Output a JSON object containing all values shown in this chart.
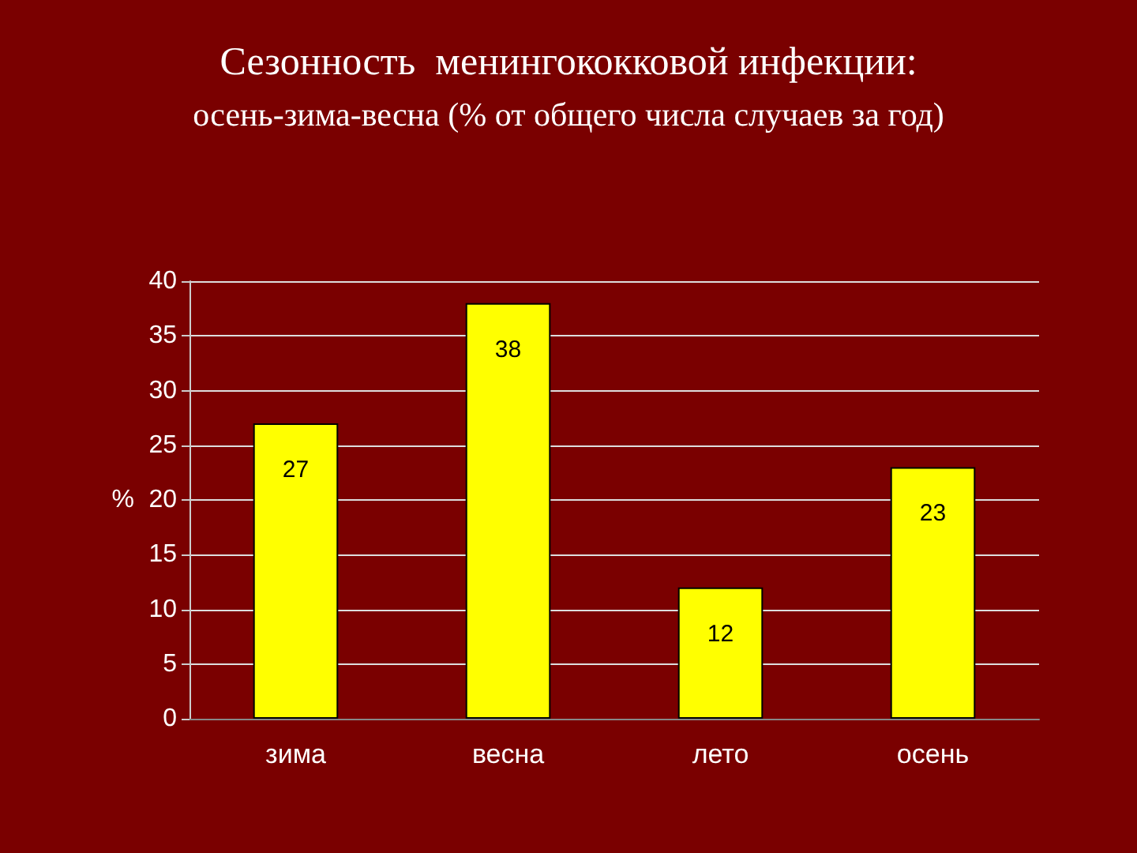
{
  "chart_data": {
    "type": "bar",
    "title": "Сезонность  менингококковой инфекции:",
    "subtitle": "осень-зима-весна (% от общего числа случаев за год)",
    "ylabel": "%",
    "categories": [
      "зима",
      "весна",
      "лето",
      "осень"
    ],
    "values": [
      27,
      38,
      12,
      23
    ],
    "color": "#ffff00",
    "ylim": [
      0,
      40
    ],
    "yticks": [
      0,
      5,
      10,
      15,
      20,
      25,
      30,
      35,
      40
    ],
    "grid": "y",
    "data_labels": true
  }
}
